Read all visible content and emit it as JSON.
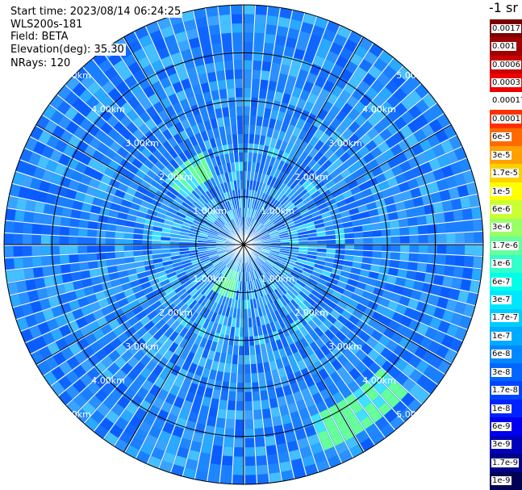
{
  "header": {
    "start_time": "Start time: 2023/08/14 06:24:25",
    "instrument": "WLS200s-181",
    "field": "Field: BETA",
    "elevation": "Elevation(deg): 35.30",
    "nrays": "NRays: 120"
  },
  "colorbar": {
    "title": "-1 sr",
    "labels": [
      "0.0017",
      "0.001",
      "0.0006",
      "0.0003",
      "0.00017",
      "0.0001",
      "6e-5",
      "3e-5",
      "1.7e-5",
      "1e-5",
      "6e-6",
      "3e-6",
      "1.7e-6",
      "1e-6",
      "6e-7",
      "3e-7",
      "1.7e-7",
      "1e-7",
      "6e-8",
      "3e-8",
      "1.7e-8",
      "1e-8",
      "6e-9",
      "3e-9",
      "1.7e-9",
      "1e-9"
    ],
    "colors": [
      "#7a0000",
      "#a00000",
      "#c80000",
      "#ee0000",
      "#ffffff",
      "#ff3000",
      "#ff6a00",
      "#ffa000",
      "#ffd000",
      "#ffff00",
      "#ccff33",
      "#99ff66",
      "#66ff99",
      "#33ffcc",
      "#00ffe6",
      "#00e6ff",
      "#00ccff",
      "#00aaff",
      "#0088ff",
      "#0066ff",
      "#0044ff",
      "#0022ff",
      "#0000ee",
      "#0000bb",
      "#000088",
      "#000055"
    ]
  },
  "chart_data": {
    "type": "heatmap",
    "projection": "polar-ppi",
    "field": "BETA",
    "nrays": 120,
    "range_km": [
      0,
      5.0
    ],
    "range_ring_labels": [
      "1.00km",
      "2.00km",
      "3.00km",
      "4.00km",
      "5.00km"
    ],
    "range_rings_km": [
      1,
      2,
      3,
      4,
      5
    ],
    "radial_lines_deg": [
      0,
      30,
      60,
      90,
      120,
      150,
      180,
      210,
      240,
      270,
      300,
      330
    ],
    "dominant_color": "#1a7fff",
    "feature_colors": [
      "#0b4fff",
      "#29a9ff",
      "#40e0ff",
      "#80ff80"
    ],
    "highlight_regions": [
      {
        "azimuth_deg": 145,
        "range_km": [
          3.8,
          4.6
        ],
        "value_level": "1.7e-7 to 1e-6"
      },
      {
        "azimuth_deg": 320,
        "range_km": [
          1.6,
          2.2
        ],
        "value_level": "6e-8 to 1.7e-7"
      },
      {
        "azimuth_deg": 200,
        "range_km": [
          0.5,
          1.1
        ],
        "value_level": "6e-8 to 1.7e-7"
      }
    ]
  }
}
